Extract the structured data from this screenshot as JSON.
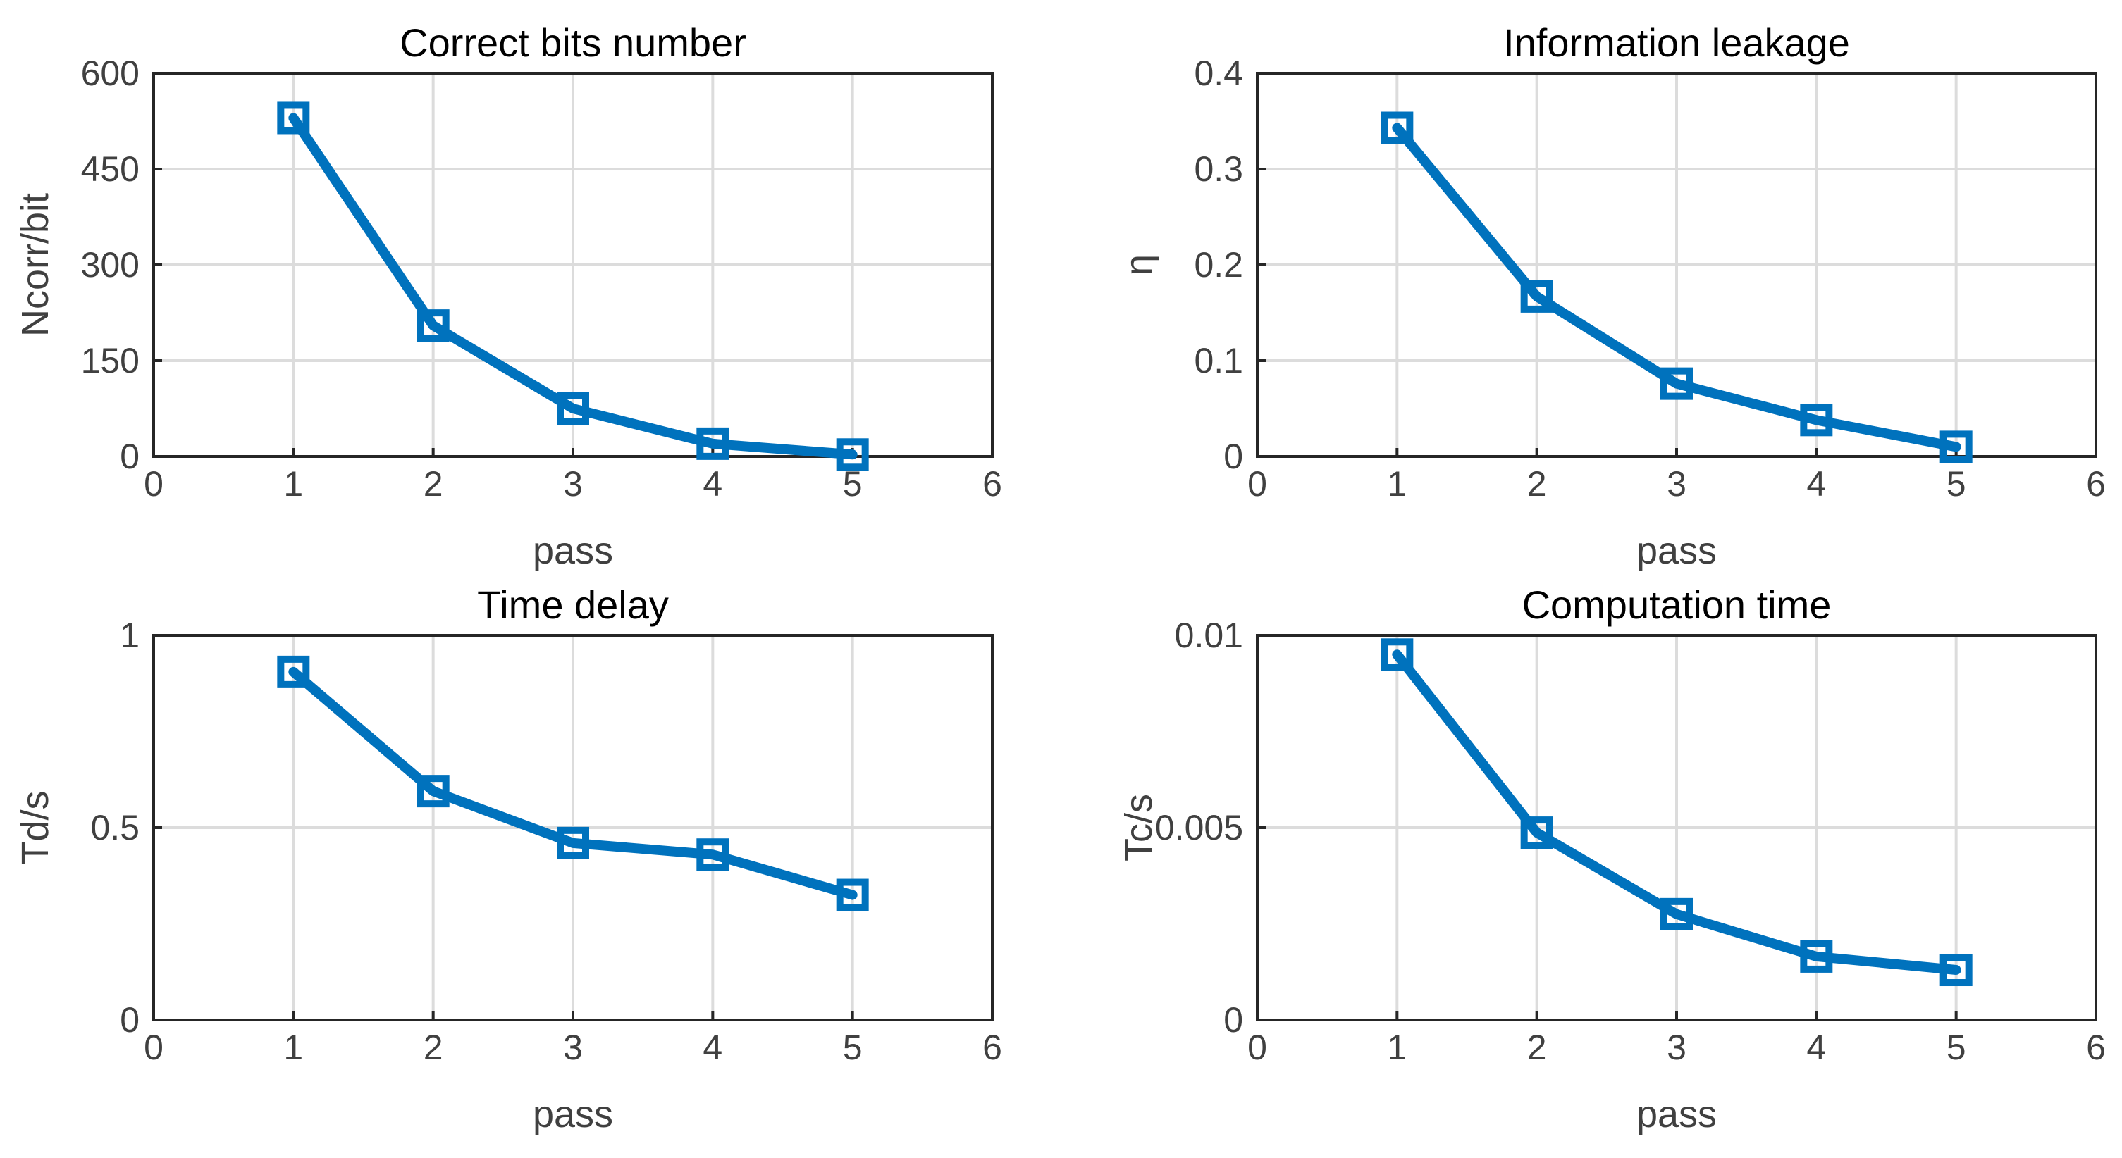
{
  "chart_data": [
    {
      "type": "line",
      "title": "Correct bits number",
      "xlabel": "pass",
      "ylabel": "Ncorr/bit",
      "xlim": [
        0,
        6
      ],
      "ylim": [
        0,
        600
      ],
      "xticks": [
        "0",
        "1",
        "2",
        "3",
        "4",
        "5",
        "6"
      ],
      "yticks": [
        "0",
        "150",
        "300",
        "450",
        "600"
      ],
      "grid": true,
      "series": [
        {
          "name": "Ncorr",
          "color": "#0072BD",
          "marker": "square",
          "x": [
            1,
            2,
            3,
            4,
            5
          ],
          "y": [
            530,
            205,
            75,
            20,
            3
          ]
        }
      ]
    },
    {
      "type": "line",
      "title": "Information leakage",
      "xlabel": "pass",
      "ylabel": "η",
      "xlim": [
        0,
        6
      ],
      "ylim": [
        0,
        0.4
      ],
      "xticks": [
        "0",
        "1",
        "2",
        "3",
        "4",
        "5",
        "6"
      ],
      "yticks": [
        "0",
        "0.1",
        "0.2",
        "0.3",
        "0.4"
      ],
      "grid": true,
      "series": [
        {
          "name": "eta",
          "color": "#0072BD",
          "marker": "square",
          "x": [
            1,
            2,
            3,
            4,
            5
          ],
          "y": [
            0.343,
            0.167,
            0.076,
            0.038,
            0.01
          ]
        }
      ]
    },
    {
      "type": "line",
      "title": "Time delay",
      "xlabel": "pass",
      "ylabel": "Td/s",
      "xlim": [
        0,
        6
      ],
      "ylim": [
        0,
        1
      ],
      "xticks": [
        "0",
        "1",
        "2",
        "3",
        "4",
        "5",
        "6"
      ],
      "yticks": [
        "0",
        "0.5",
        "1"
      ],
      "grid": true,
      "series": [
        {
          "name": "Td",
          "color": "#0072BD",
          "marker": "square",
          "x": [
            1,
            2,
            3,
            4,
            5
          ],
          "y": [
            0.905,
            0.595,
            0.46,
            0.43,
            0.325
          ]
        }
      ]
    },
    {
      "type": "line",
      "title": "Computation time",
      "xlabel": "pass",
      "ylabel": "Tc/s",
      "xlim": [
        0,
        6
      ],
      "ylim": [
        0,
        0.01
      ],
      "xticks": [
        "0",
        "1",
        "2",
        "3",
        "4",
        "5",
        "6"
      ],
      "yticks": [
        "0",
        "0.005",
        "0.01"
      ],
      "grid": true,
      "series": [
        {
          "name": "Tc",
          "color": "#0072BD",
          "marker": "square",
          "x": [
            1,
            2,
            3,
            4,
            5
          ],
          "y": [
            0.0095,
            0.00487,
            0.00275,
            0.00165,
            0.0013
          ]
        }
      ]
    }
  ]
}
